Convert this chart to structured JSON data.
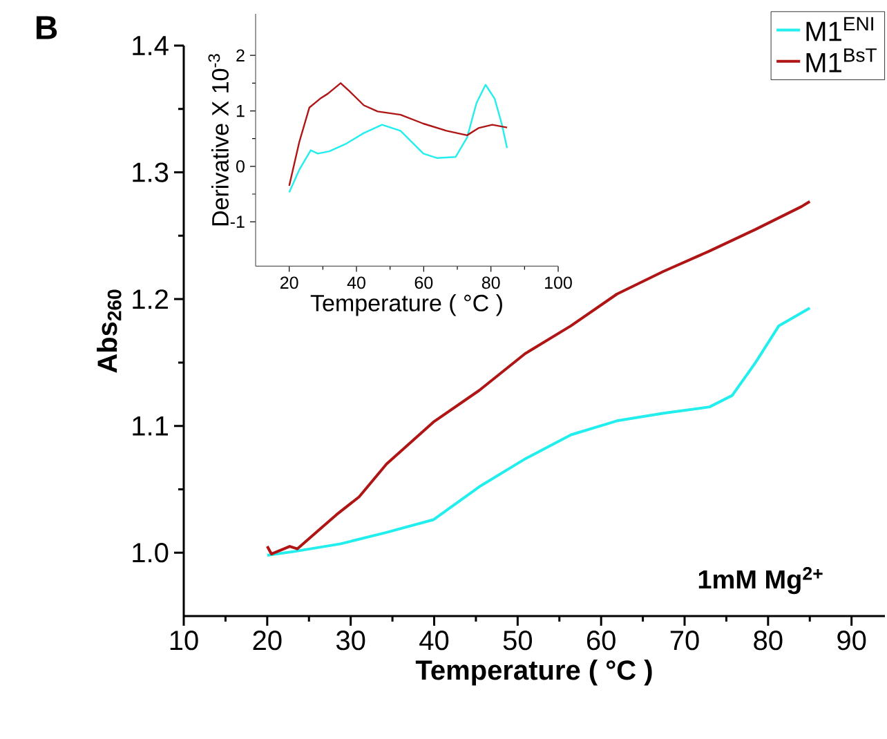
{
  "chart_data": [
    {
      "type": "line",
      "xlabel": "Temperature ( °C )",
      "ylabel": "Abs$_{260}$",
      "xlim": [
        10,
        94
      ],
      "ylim": [
        0.95,
        1.4
      ],
      "xticks": [
        10,
        20,
        30,
        40,
        50,
        60,
        70,
        80,
        90
      ],
      "yticks": [
        {
          "value": 1.0,
          "label": "1.0"
        },
        1.1,
        1.2,
        1.3,
        1.4
      ],
      "legend": "top right",
      "grid": false,
      "marker": "none",
      "line_style": "solid",
      "annotations": [
        "B",
        "1mM Mg$^{2+}$"
      ],
      "series": [
        {
          "name": "M1$^{ENI}$",
          "color": "#22eeee",
          "x": [
            20.0,
            23.3,
            28.8,
            34.3,
            39.9,
            45.4,
            50.9,
            56.4,
            61.9,
            67.5,
            73.0,
            75.7,
            78.5,
            81.3,
            85.0
          ],
          "values": [
            0.998,
            1.001,
            1.007,
            1.016,
            1.026,
            1.052,
            1.074,
            1.093,
            1.104,
            1.11,
            1.115,
            1.124,
            1.15,
            1.179,
            1.193
          ]
        },
        {
          "name": "M1$^{BsT}$",
          "color": "#b01515",
          "x": [
            20.0,
            20.5,
            22.7,
            23.6,
            28.3,
            31.0,
            34.3,
            39.9,
            45.4,
            50.9,
            56.4,
            61.9,
            67.5,
            73.0,
            78.5,
            84.0,
            85.0
          ],
          "values": [
            1.005,
            0.999,
            1.005,
            1.003,
            1.03,
            1.044,
            1.07,
            1.103,
            1.128,
            1.157,
            1.179,
            1.204,
            1.222,
            1.238,
            1.255,
            1.273,
            1.277
          ]
        }
      ]
    },
    {
      "type": "line",
      "xlabel": "Temperature ( °C )",
      "ylabel": "Derivative X 10$^{-3}$",
      "xlim": [
        10,
        100
      ],
      "ylim": [
        -1.8,
        2.75
      ],
      "xticks": [
        20,
        40,
        60,
        80,
        100
      ],
      "yticks": [
        -1,
        0,
        1,
        2
      ],
      "grid": false,
      "marker": "none",
      "line_style": "solid",
      "series": [
        {
          "color": "#22eeee",
          "x": [
            20,
            23,
            26.4,
            28.5,
            31.9,
            36.7,
            42.2,
            47.6,
            53.1,
            59.9,
            64,
            69.5,
            72.9,
            75.7,
            78.4,
            81.1,
            83.2,
            84.8
          ],
          "values": [
            -0.47,
            -0.06,
            0.29,
            0.23,
            0.27,
            0.4,
            0.6,
            0.75,
            0.64,
            0.23,
            0.15,
            0.17,
            0.52,
            1.14,
            1.47,
            1.22,
            0.77,
            0.33
          ]
        },
        {
          "color": "#b01515",
          "x": [
            20,
            23,
            26,
            29.2,
            31.5,
            35.3,
            38,
            42.2,
            46.3,
            53.1,
            59.9,
            66.8,
            72.9,
            76.3,
            80.4,
            84.8
          ],
          "values": [
            -0.35,
            0.44,
            1.06,
            1.22,
            1.31,
            1.5,
            1.35,
            1.1,
            0.99,
            0.93,
            0.77,
            0.64,
            0.56,
            0.69,
            0.75,
            0.7
          ]
        }
      ]
    }
  ]
}
